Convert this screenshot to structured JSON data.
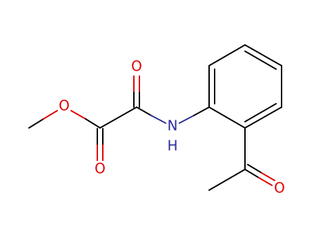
{
  "atoms": [
    {
      "label": "O"
    },
    {
      "label": "O"
    },
    {
      "label": "O"
    },
    {
      "label": "N"
    },
    {
      "label": "H"
    },
    {
      "label": "O"
    }
  ]
}
